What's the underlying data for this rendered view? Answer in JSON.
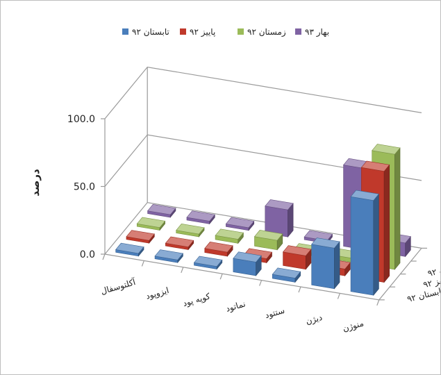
{
  "chart_data": {
    "type": "bar",
    "title": "",
    "ylabel": "درصد",
    "ylim": [
      0,
      100
    ],
    "y_ticks": [
      "0.0",
      "50.0",
      "100.0"
    ],
    "categories": [
      "آکلتوسفال",
      "ایزوپود",
      "کوپه پود",
      "نماتود",
      "ستتود",
      "دیژن",
      "منوژن"
    ],
    "series": [
      {
        "name": "تابستان ۹۲",
        "color": "#4a7ebb",
        "values": [
          2,
          2,
          2,
          10,
          3,
          30,
          70
        ]
      },
      {
        "name": "پاییز ۹۲",
        "color": "#c0392b",
        "values": [
          2,
          2,
          3,
          3,
          10,
          5,
          82
        ]
      },
      {
        "name": "زمستان ۹۲",
        "color": "#9bbb59",
        "values": [
          2,
          2,
          3,
          7,
          2,
          3,
          85
        ]
      },
      {
        "name": "بهار ۹۳",
        "color": "#7f63a3",
        "values": [
          2,
          2,
          2,
          20,
          2,
          60,
          10
        ]
      }
    ],
    "legend_position": "top",
    "grid": true
  }
}
